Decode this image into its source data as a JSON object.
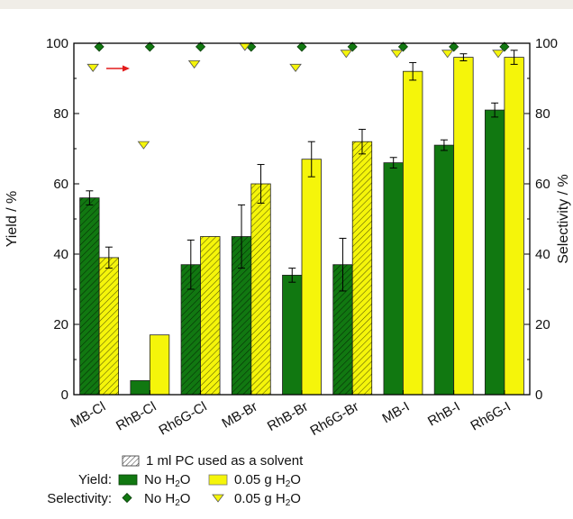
{
  "chart_data": {
    "type": "bar",
    "categories": [
      "MB-Cl",
      "RhB-Cl",
      "Rh6G-Cl",
      "MB-Br",
      "RhB-Br",
      "Rh6G-Br",
      "MB-I",
      "RhB-I",
      "Rh6G-I"
    ],
    "ylabel": "Yield / %",
    "y2label": "Selectivity / %",
    "ylim": [
      0,
      100
    ],
    "y2lim": [
      0,
      100
    ],
    "yticks": [
      0,
      20,
      40,
      60,
      80,
      100
    ],
    "grid": false,
    "legend_position": "bottom",
    "series": [
      {
        "name": "No H2O",
        "group": "Yield",
        "color": "#117811",
        "values": [
          56,
          4,
          37,
          45,
          34,
          37,
          66,
          71,
          81
        ],
        "errors": [
          2,
          0,
          7,
          9,
          2,
          7.5,
          1.5,
          1.5,
          2
        ],
        "hatched": [
          true,
          false,
          true,
          true,
          false,
          true,
          false,
          false,
          false
        ]
      },
      {
        "name": "0.05 g H2O",
        "group": "Yield",
        "color": "#f5f50a",
        "values": [
          39,
          17,
          45,
          60,
          67,
          72,
          92,
          96,
          96
        ],
        "errors": [
          3,
          0,
          0,
          5.5,
          5,
          3.5,
          2.5,
          1,
          2
        ],
        "hatched": [
          true,
          false,
          true,
          true,
          false,
          true,
          false,
          false,
          false
        ]
      },
      {
        "name": "No H2O",
        "group": "Selectivity",
        "marker": "diamond",
        "color": "#117811",
        "values": [
          99,
          99,
          99,
          99,
          99,
          99,
          99,
          99,
          99
        ]
      },
      {
        "name": "0.05 g H2O",
        "group": "Selectivity",
        "marker": "triangle-down",
        "color": "#f5f50a",
        "values": [
          93,
          71,
          94,
          99,
          93,
          97,
          97,
          97,
          97
        ]
      }
    ],
    "annotation": "red arrow pointing toward right axis",
    "legend": {
      "hatch_note": "1 ml PC used as a solvent",
      "yield_label": "Yield:",
      "selectivity_label": "Selectivity:",
      "no_h2o": "No H",
      "water_amount": "0.05 g H",
      "h2o_sub": "2",
      "h2o_o": "O"
    }
  }
}
